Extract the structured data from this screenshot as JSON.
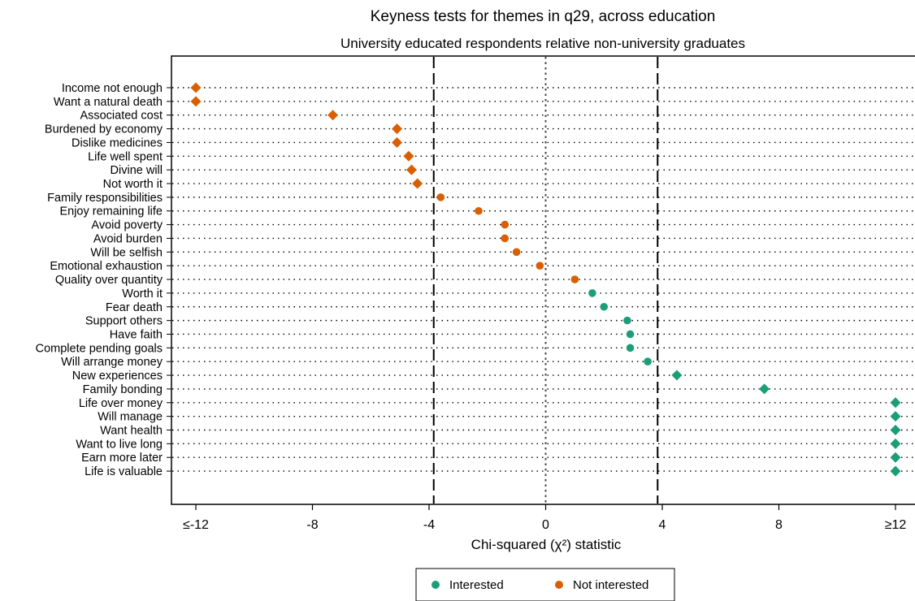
{
  "chart_data": {
    "type": "scatter",
    "title": "Keyness tests for themes in q29, across education",
    "subtitle": "University educated respondents relative non-university graduates",
    "xlabel": "Chi-squared (χ²) statistic",
    "xlim": [
      -12,
      12
    ],
    "xticks": [
      {
        "value": -12,
        "label": "≤-12"
      },
      {
        "value": -8,
        "label": "-8"
      },
      {
        "value": -4,
        "label": "-4"
      },
      {
        "value": 0,
        "label": "0"
      },
      {
        "value": 4,
        "label": "4"
      },
      {
        "value": 8,
        "label": "8"
      },
      {
        "value": 12,
        "label": "≥12"
      }
    ],
    "reference_lines": [
      {
        "value": -3.84,
        "style": "dashed"
      },
      {
        "value": 0,
        "style": "dotted"
      },
      {
        "value": 3.84,
        "style": "dashed"
      }
    ],
    "legend": {
      "placement": "bottom",
      "entries": [
        {
          "label": "Interested",
          "color": "#1b9e77"
        },
        {
          "label": "Not interested",
          "color": "#d95f02"
        }
      ]
    },
    "colors": {
      "interested": "#1b9e77",
      "not_interested": "#d95f02"
    },
    "points": [
      {
        "category": "Income not enough",
        "value": -12,
        "group": "not_interested",
        "marker": "diamond"
      },
      {
        "category": "Want a natural death",
        "value": -12,
        "group": "not_interested",
        "marker": "diamond"
      },
      {
        "category": "Associated cost",
        "value": -7.3,
        "group": "not_interested",
        "marker": "diamond"
      },
      {
        "category": "Burdened by economy",
        "value": -5.1,
        "group": "not_interested",
        "marker": "diamond"
      },
      {
        "category": "Dislike medicines",
        "value": -5.1,
        "group": "not_interested",
        "marker": "diamond"
      },
      {
        "category": "Life well spent",
        "value": -4.7,
        "group": "not_interested",
        "marker": "diamond"
      },
      {
        "category": "Divine will",
        "value": -4.6,
        "group": "not_interested",
        "marker": "diamond"
      },
      {
        "category": "Not worth it",
        "value": -4.4,
        "group": "not_interested",
        "marker": "diamond"
      },
      {
        "category": "Family responsibilities",
        "value": -3.6,
        "group": "not_interested",
        "marker": "circle"
      },
      {
        "category": "Enjoy remaining life",
        "value": -2.3,
        "group": "not_interested",
        "marker": "circle"
      },
      {
        "category": "Avoid poverty",
        "value": -1.4,
        "group": "not_interested",
        "marker": "circle"
      },
      {
        "category": "Avoid burden",
        "value": -1.4,
        "group": "not_interested",
        "marker": "circle"
      },
      {
        "category": "Will be selfish",
        "value": -1.0,
        "group": "not_interested",
        "marker": "circle"
      },
      {
        "category": "Emotional exhaustion",
        "value": -0.2,
        "group": "not_interested",
        "marker": "circle"
      },
      {
        "category": "Quality over quantity",
        "value": 1.0,
        "group": "not_interested",
        "marker": "circle"
      },
      {
        "category": "Worth it",
        "value": 1.6,
        "group": "interested",
        "marker": "circle"
      },
      {
        "category": "Fear death",
        "value": 2.0,
        "group": "interested",
        "marker": "circle"
      },
      {
        "category": "Support others",
        "value": 2.8,
        "group": "interested",
        "marker": "circle"
      },
      {
        "category": "Have faith",
        "value": 2.9,
        "group": "interested",
        "marker": "circle"
      },
      {
        "category": "Complete pending goals",
        "value": 2.9,
        "group": "interested",
        "marker": "circle"
      },
      {
        "category": "Will arrange money",
        "value": 3.5,
        "group": "interested",
        "marker": "circle"
      },
      {
        "category": "New experiences",
        "value": 4.5,
        "group": "interested",
        "marker": "diamond"
      },
      {
        "category": "Family bonding",
        "value": 7.5,
        "group": "interested",
        "marker": "diamond"
      },
      {
        "category": "Life over money",
        "value": 12,
        "group": "interested",
        "marker": "diamond"
      },
      {
        "category": "Will manage",
        "value": 12,
        "group": "interested",
        "marker": "diamond"
      },
      {
        "category": "Want health",
        "value": 12,
        "group": "interested",
        "marker": "diamond"
      },
      {
        "category": "Want to live long",
        "value": 12,
        "group": "interested",
        "marker": "diamond"
      },
      {
        "category": "Earn more later",
        "value": 12,
        "group": "interested",
        "marker": "diamond"
      },
      {
        "category": "Life is valuable",
        "value": 12,
        "group": "interested",
        "marker": "diamond"
      }
    ]
  }
}
